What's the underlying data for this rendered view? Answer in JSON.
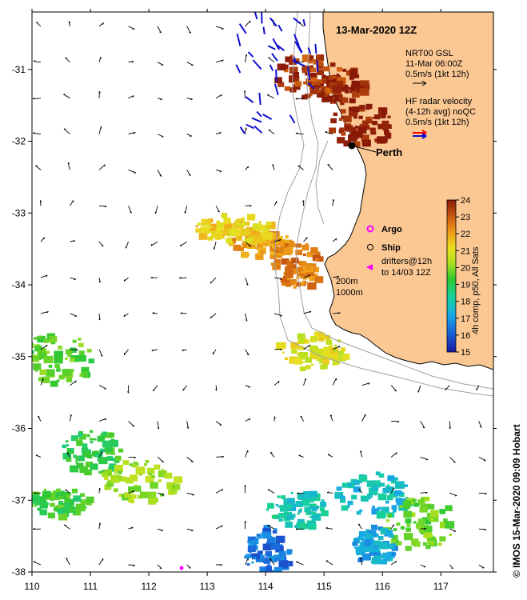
{
  "map": {
    "title": "13-Mar-2020 12Z",
    "city": {
      "name": "Perth",
      "lon": 115.85,
      "lat": -31.95
    },
    "extent": {
      "lon": [
        110,
        117.9
      ],
      "lat": [
        -38,
        -30.2
      ]
    },
    "x_ticks": [
      {
        "value": 110,
        "label": "110"
      },
      {
        "value": 111,
        "label": "111"
      },
      {
        "value": 112,
        "label": "112"
      },
      {
        "value": 113,
        "label": "113"
      },
      {
        "value": 114,
        "label": "114"
      },
      {
        "value": 115,
        "label": "115"
      },
      {
        "value": 116,
        "label": "116"
      },
      {
        "value": 117,
        "label": "117"
      }
    ],
    "y_ticks": [
      {
        "value": -31,
        "label": "-31"
      },
      {
        "value": -32,
        "label": "-32"
      },
      {
        "value": -33,
        "label": "-33"
      },
      {
        "value": -34,
        "label": "-34"
      },
      {
        "value": -35,
        "label": "-35"
      },
      {
        "value": -36,
        "label": "-36"
      },
      {
        "value": -37,
        "label": "-37"
      },
      {
        "value": -38,
        "label": "-38"
      }
    ],
    "legend": {
      "gsl_title": "NRT00 GSL",
      "gsl_date": "11-Mar 06:00Z",
      "gsl_scale": "0.5m/s (1kt 12h)",
      "hf_title": "HF radar velocity",
      "hf_avg": "(4-12h avg) noQC",
      "hf_scale": "0.5m/s (1kt 12h)",
      "argo": "Argo",
      "ship": "Ship",
      "drifters_1": "drifters@12h",
      "drifters_2": "to 14/03 12Z",
      "contour_200": "200m",
      "contour_1000": "1000m"
    },
    "colorbar": {
      "label": "4h comp, p50, All Sats",
      "min": 15,
      "max": 24,
      "tick_labels": [
        "15",
        "16",
        "17",
        "18",
        "19",
        "20",
        "21",
        "22",
        "23",
        "24"
      ]
    },
    "credit": "© IMOS 15-Mar-2020 09:09 Hobart",
    "colors": {
      "land": "#fbc894",
      "coast": "#000000",
      "bathy": "#a0a0a0",
      "gsl_arrow": "#000000",
      "hf_arrow": "#1010d0",
      "hf_arrow_alt": "#ff0000",
      "argo": "#ff00ff",
      "city_dot": "#000000"
    },
    "sst_patches": [
      {
        "lon": 115.6,
        "lat": -31.75,
        "temp": 24.0
      },
      {
        "lon": 115.25,
        "lat": -31.2,
        "temp": 24.0
      },
      {
        "lon": 114.7,
        "lat": -31.05,
        "temp": 23.5
      },
      {
        "lon": 113.9,
        "lat": -33.4,
        "temp": 22.0
      },
      {
        "lon": 113.4,
        "lat": -33.2,
        "temp": 21.3
      },
      {
        "lon": 114.5,
        "lat": -33.7,
        "temp": 22.6
      },
      {
        "lon": 114.7,
        "lat": -34.9,
        "temp": 20.8
      },
      {
        "lon": 110.4,
        "lat": -35.0,
        "temp": 19.3
      },
      {
        "lon": 111.0,
        "lat": -36.3,
        "temp": 18.8
      },
      {
        "lon": 111.8,
        "lat": -36.7,
        "temp": 19.9
      },
      {
        "lon": 114.5,
        "lat": -37.1,
        "temp": 17.8
      },
      {
        "lon": 115.8,
        "lat": -36.9,
        "temp": 17.5
      },
      {
        "lon": 116.6,
        "lat": -37.3,
        "temp": 19.5
      },
      {
        "lon": 114.0,
        "lat": -37.7,
        "temp": 16.3
      },
      {
        "lon": 115.8,
        "lat": -37.6,
        "temp": 17.0
      },
      {
        "lon": 110.4,
        "lat": -37.0,
        "temp": 19.0
      }
    ]
  }
}
